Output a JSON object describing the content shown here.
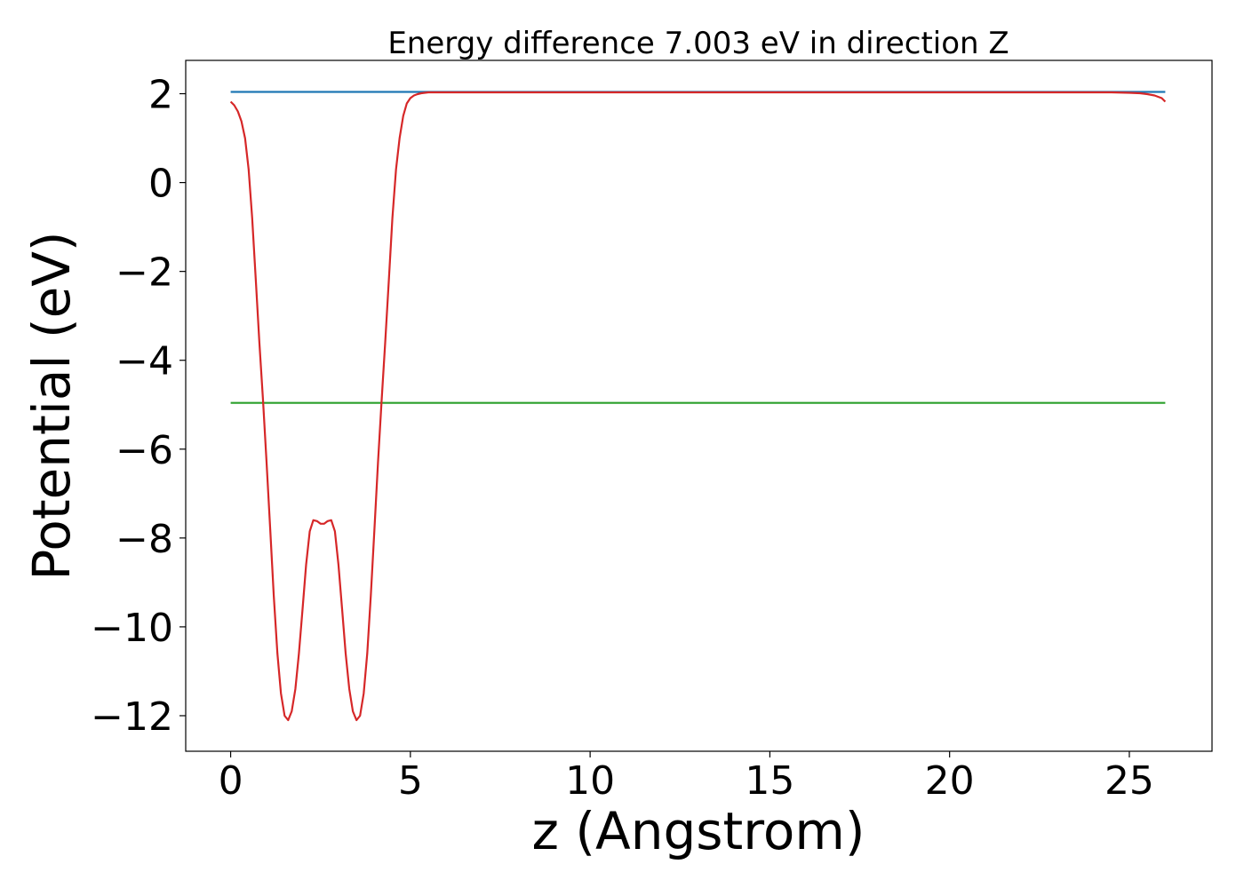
{
  "chart_data": {
    "type": "line",
    "title": "Energy difference 7.003 eV in direction Z",
    "xlabel": "z (Angstrom)",
    "ylabel": "Potential (eV)",
    "xlim": [
      -1.25,
      27.3
    ],
    "ylim": [
      -12.8,
      2.75
    ],
    "x_ticks": [
      0,
      5,
      10,
      15,
      20,
      25
    ],
    "y_ticks": [
      2,
      0,
      -2,
      -4,
      -6,
      -8,
      -10,
      -12
    ],
    "x_tick_labels": [
      "0",
      "5",
      "10",
      "15",
      "20",
      "25"
    ],
    "y_tick_labels": [
      "2",
      "0",
      "−2",
      "−4",
      "−6",
      "−8",
      "−10",
      "−12"
    ],
    "grid": false,
    "legend": "none",
    "series": [
      {
        "color": "#1f77b4",
        "x": [
          0,
          26
        ],
        "y": [
          2.04,
          2.04
        ]
      },
      {
        "color": "#2ca02c",
        "x": [
          0,
          26
        ],
        "y": [
          -4.96,
          -4.96
        ]
      },
      {
        "color": "#d62728",
        "x": [
          0,
          0.1,
          0.2,
          0.3,
          0.4,
          0.5,
          0.6,
          0.7,
          0.8,
          0.9,
          1.0,
          1.1,
          1.2,
          1.3,
          1.4,
          1.5,
          1.6,
          1.7,
          1.8,
          1.9,
          2.0,
          2.1,
          2.2,
          2.3,
          2.4,
          2.5,
          2.6,
          2.7,
          2.8,
          2.9,
          3.0,
          3.1,
          3.2,
          3.3,
          3.4,
          3.5,
          3.6,
          3.7,
          3.8,
          3.9,
          4.0,
          4.1,
          4.2,
          4.3,
          4.4,
          4.5,
          4.6,
          4.7,
          4.8,
          4.9,
          5.0,
          5.1,
          5.2,
          5.3,
          5.4,
          5.5,
          5.6,
          5.7,
          5.8,
          5.9,
          6.0,
          6.1,
          6.2,
          6.3,
          6.4,
          6.5,
          6.6,
          6.7,
          6.8,
          6.9,
          7.0,
          7.1,
          7.2,
          7.3,
          7.4,
          7.5,
          7.6,
          7.7,
          7.8,
          7.9,
          8.0,
          9.0,
          10.0,
          15.0,
          20.0,
          24.0,
          24.5,
          25.0,
          25.3,
          25.5,
          25.7,
          25.9,
          26.0
        ],
        "y": [
          1.82,
          1.74,
          1.6,
          1.38,
          1.0,
          0.3,
          -0.8,
          -2.2,
          -3.6,
          -4.9,
          -6.3,
          -7.8,
          -9.3,
          -10.6,
          -11.5,
          -12.0,
          -12.1,
          -11.9,
          -11.4,
          -10.6,
          -9.6,
          -8.6,
          -7.85,
          -7.6,
          -7.62,
          -7.68,
          -7.68,
          -7.62,
          -7.6,
          -7.85,
          -8.6,
          -9.6,
          -10.6,
          -11.4,
          -11.9,
          -12.1,
          -12.0,
          -11.5,
          -10.6,
          -9.3,
          -7.8,
          -6.3,
          -4.9,
          -3.6,
          -2.2,
          -0.8,
          0.3,
          1.0,
          1.5,
          1.78,
          1.9,
          1.96,
          1.99,
          2.01,
          2.02,
          2.03,
          2.03,
          2.03,
          2.03,
          2.03,
          2.03,
          2.03,
          2.03,
          2.03,
          2.03,
          2.03,
          2.03,
          2.03,
          2.03,
          2.03,
          2.03,
          2.03,
          2.03,
          2.03,
          2.03,
          2.03,
          2.03,
          2.03,
          2.03,
          2.03,
          2.03,
          2.03,
          2.03,
          2.03,
          2.03,
          2.03,
          2.03,
          2.02,
          2.01,
          1.99,
          1.96,
          1.9,
          1.82
        ]
      }
    ]
  }
}
